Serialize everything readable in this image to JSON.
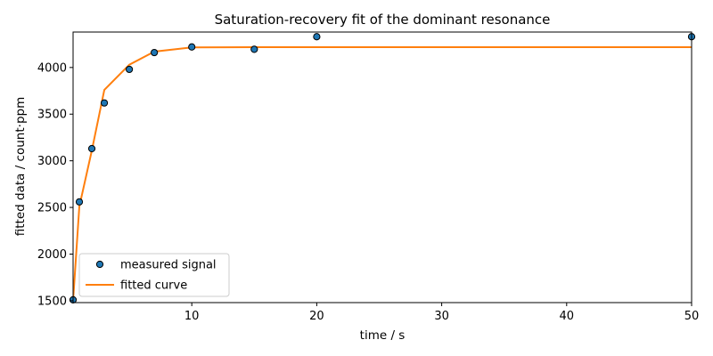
{
  "chart_data": {
    "type": "scatter",
    "title": "Saturation-recovery fit of the dominant resonance",
    "xlabel": "time / s",
    "ylabel": "fitted data / count·ppm",
    "xlim": [
      0.5,
      50
    ],
    "ylim": [
      1480,
      4380
    ],
    "xticks": [
      10,
      20,
      30,
      40,
      50
    ],
    "yticks": [
      1500,
      2000,
      2500,
      3000,
      3500,
      4000
    ],
    "grid": false,
    "legend_position": "lower-left",
    "series": [
      {
        "name": "measured signal",
        "kind": "markers",
        "color": "#1f77b4",
        "x": [
          0.5,
          1,
          2,
          3,
          5,
          7,
          10,
          15,
          20,
          50
        ],
        "y": [
          1510,
          2560,
          3130,
          3620,
          3980,
          4160,
          4220,
          4195,
          4330,
          4330
        ]
      },
      {
        "name": "fitted curve",
        "kind": "line",
        "color": "#ff7f0e",
        "x": [
          0.5,
          1,
          2,
          3,
          5,
          7,
          10,
          15,
          20,
          50
        ],
        "y": [
          1500,
          2510,
          3110,
          3760,
          4030,
          4170,
          4215,
          4218,
          4218,
          4218
        ]
      }
    ]
  }
}
